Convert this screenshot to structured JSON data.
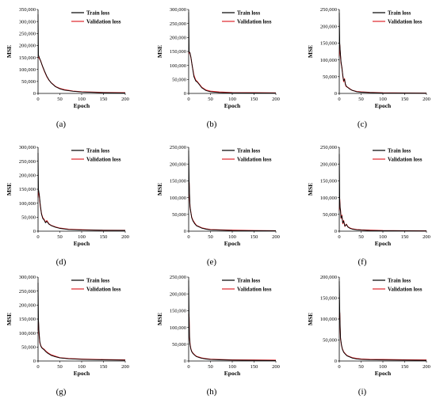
{
  "figure": {
    "legend": {
      "train": "Train loss",
      "validation": "Validation loss"
    },
    "colors": {
      "train": "#000000",
      "validation": "#e0262b"
    }
  },
  "chart_data": [
    {
      "type": "line",
      "caption": "(a)",
      "xlabel": "Epoch",
      "ylabel": "MSE",
      "xlim": [
        0,
        200
      ],
      "ylim": [
        0,
        350000
      ],
      "grid": false,
      "legend": "top-right",
      "x_ticks": [
        "0",
        "50",
        "100",
        "150",
        "200"
      ],
      "y_ticks": [
        "0",
        "50,000",
        "100,000",
        "150,000",
        "200,000",
        "250,000",
        "300,000",
        "350,000"
      ],
      "series": [
        {
          "name": "Train loss",
          "color": "#000000",
          "x": [
            0,
            1,
            3,
            6,
            10,
            15,
            20,
            25,
            30,
            40,
            50,
            60,
            80,
            100,
            150,
            200
          ],
          "values": [
            330000,
            160000,
            150000,
            135000,
            115000,
            92000,
            72000,
            56000,
            44000,
            28000,
            19000,
            14000,
            9000,
            6000,
            3000,
            2000
          ]
        },
        {
          "name": "Validation loss",
          "color": "#e0262b",
          "x": [
            0,
            1,
            3,
            6,
            10,
            15,
            20,
            25,
            30,
            40,
            50,
            60,
            80,
            100,
            150,
            200
          ],
          "values": [
            150000,
            152000,
            146000,
            136000,
            114000,
            90000,
            70000,
            55000,
            45000,
            29000,
            21000,
            16000,
            10000,
            7000,
            4000,
            3000
          ]
        }
      ]
    },
    {
      "type": "line",
      "caption": "(b)",
      "xlabel": "Epoch",
      "ylabel": "MSE",
      "xlim": [
        0,
        200
      ],
      "ylim": [
        0,
        300000
      ],
      "grid": false,
      "legend": "top-right",
      "x_ticks": [
        "0",
        "50",
        "100",
        "150",
        "200"
      ],
      "y_ticks": [
        "0",
        "50,000",
        "100,000",
        "150,000",
        "200,000",
        "250,000",
        "300,000"
      ],
      "series": [
        {
          "name": "Train loss",
          "color": "#000000",
          "x": [
            0,
            1,
            3,
            5,
            8,
            12,
            16,
            20,
            25,
            30,
            40,
            50,
            70,
            100,
            150,
            200
          ],
          "values": [
            290000,
            150000,
            145000,
            130000,
            100000,
            60000,
            45000,
            40000,
            30000,
            20000,
            10000,
            6000,
            3000,
            2000,
            1500,
            1000
          ]
        },
        {
          "name": "Validation loss",
          "color": "#e0262b",
          "x": [
            0,
            1,
            3,
            5,
            8,
            12,
            16,
            20,
            25,
            30,
            40,
            50,
            70,
            100,
            150,
            200
          ],
          "values": [
            140000,
            148000,
            144000,
            128000,
            100000,
            65000,
            48000,
            42000,
            32000,
            22000,
            12000,
            8000,
            5000,
            3000,
            2500,
            2000
          ]
        }
      ]
    },
    {
      "type": "line",
      "caption": "(c)",
      "xlabel": "Epoch",
      "ylabel": "MSE",
      "xlim": [
        0,
        200
      ],
      "ylim": [
        0,
        250000
      ],
      "grid": false,
      "legend": "top-right",
      "x_ticks": [
        "0",
        "50",
        "100",
        "150",
        "200"
      ],
      "y_ticks": [
        "0",
        "50,000",
        "100,000",
        "150,000",
        "200,000",
        "250,000"
      ],
      "series": [
        {
          "name": "Train loss",
          "color": "#000000",
          "x": [
            0,
            1,
            2,
            4,
            6,
            8,
            10,
            12,
            14,
            16,
            20,
            25,
            30,
            40,
            50,
            70,
            100,
            150,
            200
          ],
          "values": [
            240000,
            150000,
            130000,
            95000,
            75000,
            55000,
            38000,
            42000,
            28000,
            22000,
            17000,
            12000,
            9000,
            5000,
            3500,
            2500,
            1500,
            1000,
            800
          ]
        },
        {
          "name": "Validation loss",
          "color": "#e0262b",
          "x": [
            0,
            1,
            2,
            4,
            6,
            8,
            10,
            12,
            14,
            16,
            20,
            25,
            30,
            40,
            50,
            70,
            100,
            150,
            200
          ],
          "values": [
            110000,
            145000,
            125000,
            90000,
            78000,
            52000,
            35000,
            44000,
            26000,
            20000,
            18000,
            13000,
            9000,
            6000,
            4500,
            3000,
            2000,
            1500,
            1200
          ]
        }
      ]
    },
    {
      "type": "line",
      "caption": "(d)",
      "xlabel": "Epoch",
      "ylabel": "MSE",
      "xlim": [
        0,
        200
      ],
      "ylim": [
        0,
        300000
      ],
      "grid": false,
      "legend": "top-right",
      "x_ticks": [
        "0",
        "50",
        "100",
        "150",
        "200"
      ],
      "y_ticks": [
        "0",
        "50,000",
        "100,000",
        "150,000",
        "200,000",
        "250,000",
        "300,000"
      ],
      "series": [
        {
          "name": "Train loss",
          "color": "#000000",
          "x": [
            0,
            1,
            3,
            5,
            8,
            11,
            14,
            17,
            20,
            25,
            30,
            40,
            50,
            70,
            100,
            150,
            200
          ],
          "values": [
            280000,
            150000,
            130000,
            95000,
            60000,
            45000,
            40000,
            30000,
            35000,
            25000,
            20000,
            14000,
            10000,
            6000,
            4000,
            3000,
            2500
          ]
        },
        {
          "name": "Validation loss",
          "color": "#e0262b",
          "x": [
            0,
            1,
            3,
            5,
            8,
            11,
            14,
            17,
            20,
            25,
            30,
            40,
            50,
            70,
            100,
            150,
            200
          ],
          "values": [
            120000,
            145000,
            125000,
            90000,
            62000,
            48000,
            42000,
            32000,
            38000,
            26000,
            21000,
            15000,
            11000,
            7000,
            5000,
            3500,
            3000
          ]
        }
      ]
    },
    {
      "type": "line",
      "caption": "(e)",
      "xlabel": "Epoch",
      "ylabel": "MSE",
      "xlim": [
        0,
        200
      ],
      "ylim": [
        0,
        250000
      ],
      "grid": false,
      "legend": "top-right",
      "x_ticks": [
        "0",
        "50",
        "100",
        "150",
        "200"
      ],
      "y_ticks": [
        "0",
        "50,000",
        "100,000",
        "150,000",
        "200,000",
        "250,000"
      ],
      "series": [
        {
          "name": "Train loss",
          "color": "#000000",
          "x": [
            0,
            1,
            2,
            3,
            5,
            7,
            10,
            14,
            18,
            25,
            30,
            40,
            50,
            70,
            100,
            150,
            200
          ],
          "values": [
            240000,
            150000,
            110000,
            75000,
            55000,
            40000,
            30000,
            22000,
            16000,
            12000,
            9000,
            6000,
            4000,
            3000,
            2000,
            1500,
            1000
          ]
        },
        {
          "name": "Validation loss",
          "color": "#e0262b",
          "x": [
            0,
            1,
            2,
            3,
            5,
            7,
            10,
            14,
            18,
            25,
            30,
            40,
            50,
            70,
            100,
            150,
            200
          ],
          "values": [
            140000,
            145000,
            100000,
            72000,
            56000,
            42000,
            32000,
            24000,
            17000,
            13000,
            10000,
            7000,
            5000,
            4000,
            3000,
            2000,
            1500
          ]
        }
      ]
    },
    {
      "type": "line",
      "caption": "(f)",
      "xlabel": "Epoch",
      "ylabel": "MSE",
      "xlim": [
        0,
        200
      ],
      "ylim": [
        0,
        250000
      ],
      "grid": false,
      "legend": "top-right",
      "x_ticks": [
        "0",
        "50",
        "100",
        "150",
        "200"
      ],
      "y_ticks": [
        "0",
        "50,000",
        "100,000",
        "150,000",
        "200,000",
        "250,000"
      ],
      "series": [
        {
          "name": "Train loss",
          "color": "#000000",
          "x": [
            0,
            1,
            2,
            3,
            4,
            6,
            8,
            10,
            13,
            16,
            20,
            25,
            30,
            40,
            50,
            70,
            100,
            150,
            200
          ],
          "values": [
            230000,
            90000,
            70000,
            60000,
            40000,
            45000,
            25000,
            30000,
            15000,
            20000,
            12000,
            8000,
            6000,
            4000,
            3000,
            2000,
            1500,
            1000,
            800
          ]
        },
        {
          "name": "Validation loss",
          "color": "#e0262b",
          "x": [
            0,
            1,
            2,
            3,
            4,
            6,
            8,
            10,
            13,
            16,
            20,
            25,
            30,
            40,
            50,
            70,
            100,
            150,
            200
          ],
          "values": [
            60000,
            95000,
            68000,
            62000,
            38000,
            48000,
            22000,
            32000,
            14000,
            21000,
            13000,
            9000,
            7000,
            5000,
            4000,
            3000,
            2000,
            1500,
            1000
          ]
        }
      ]
    },
    {
      "type": "line",
      "caption": "(g)",
      "xlabel": "Epoch",
      "ylabel": "MSE",
      "xlim": [
        0,
        200
      ],
      "ylim": [
        0,
        300000
      ],
      "grid": false,
      "legend": "top-right",
      "x_ticks": [
        "0",
        "50",
        "100",
        "150",
        "200"
      ],
      "y_ticks": [
        "0",
        "50,000",
        "100,000",
        "150,000",
        "200,000",
        "250,000",
        "300,000"
      ],
      "series": [
        {
          "name": "Train loss",
          "color": "#000000",
          "x": [
            0,
            1,
            2,
            4,
            6,
            8,
            10,
            14,
            18,
            22,
            26,
            30,
            40,
            50,
            70,
            100,
            150,
            200
          ],
          "values": [
            280000,
            150000,
            110000,
            70000,
            55000,
            48000,
            45000,
            40000,
            33000,
            28000,
            24000,
            20000,
            15000,
            11000,
            8000,
            6000,
            4000,
            3000
          ]
        },
        {
          "name": "Validation loss",
          "color": "#e0262b",
          "x": [
            0,
            1,
            2,
            4,
            6,
            8,
            10,
            14,
            18,
            22,
            26,
            30,
            40,
            50,
            70,
            100,
            150,
            200
          ],
          "values": [
            110000,
            140000,
            100000,
            66000,
            56000,
            50000,
            46000,
            42000,
            35000,
            30000,
            26000,
            22000,
            17000,
            12000,
            9000,
            7000,
            5000,
            4000
          ]
        }
      ]
    },
    {
      "type": "line",
      "caption": "(h)",
      "xlabel": "Epoch",
      "ylabel": "MSE",
      "xlim": [
        0,
        200
      ],
      "ylim": [
        0,
        250000
      ],
      "grid": false,
      "legend": "top-right",
      "x_ticks": [
        "0",
        "50",
        "100",
        "150",
        "200"
      ],
      "y_ticks": [
        "0",
        "50,000",
        "100,000",
        "150,000",
        "200,000",
        "250,000"
      ],
      "series": [
        {
          "name": "Train loss",
          "color": "#000000",
          "x": [
            0,
            1,
            2,
            3,
            5,
            7,
            10,
            14,
            18,
            25,
            30,
            40,
            50,
            70,
            100,
            150,
            200
          ],
          "values": [
            240000,
            120000,
            70000,
            50000,
            35000,
            28000,
            22000,
            17000,
            13000,
            10000,
            8000,
            6000,
            4500,
            3500,
            2500,
            2000,
            1500
          ]
        },
        {
          "name": "Validation loss",
          "color": "#e0262b",
          "x": [
            0,
            1,
            2,
            3,
            5,
            7,
            10,
            14,
            18,
            25,
            30,
            40,
            50,
            70,
            100,
            150,
            200
          ],
          "values": [
            140000,
            130000,
            72000,
            52000,
            36000,
            29000,
            23000,
            18000,
            14000,
            11000,
            9000,
            7000,
            5500,
            4500,
            3500,
            3000,
            2500
          ]
        }
      ]
    },
    {
      "type": "line",
      "caption": "(i)",
      "xlabel": "Epoch",
      "ylabel": "MSE",
      "xlim": [
        0,
        200
      ],
      "ylim": [
        0,
        200000
      ],
      "grid": false,
      "legend": "top-right",
      "x_ticks": [
        "0",
        "50",
        "100",
        "150",
        "200"
      ],
      "y_ticks": [
        "0",
        "50,000",
        "100,000",
        "150,000",
        "200,000"
      ],
      "series": [
        {
          "name": "Train loss",
          "color": "#000000",
          "x": [
            0,
            1,
            2,
            3,
            5,
            7,
            10,
            14,
            18,
            25,
            30,
            40,
            50,
            70,
            100,
            150,
            200
          ],
          "values": [
            190000,
            120000,
            80000,
            55000,
            38000,
            28000,
            21000,
            16000,
            12000,
            9000,
            7000,
            5000,
            4000,
            3000,
            2500,
            2000,
            1500
          ]
        },
        {
          "name": "Validation loss",
          "color": "#e0262b",
          "x": [
            0,
            1,
            2,
            3,
            5,
            7,
            10,
            14,
            18,
            25,
            30,
            40,
            50,
            70,
            100,
            150,
            200
          ],
          "values": [
            100000,
            115000,
            78000,
            52000,
            37000,
            29000,
            22000,
            17000,
            13000,
            10000,
            8000,
            6000,
            5000,
            4000,
            3500,
            3000,
            2500
          ]
        }
      ]
    }
  ]
}
